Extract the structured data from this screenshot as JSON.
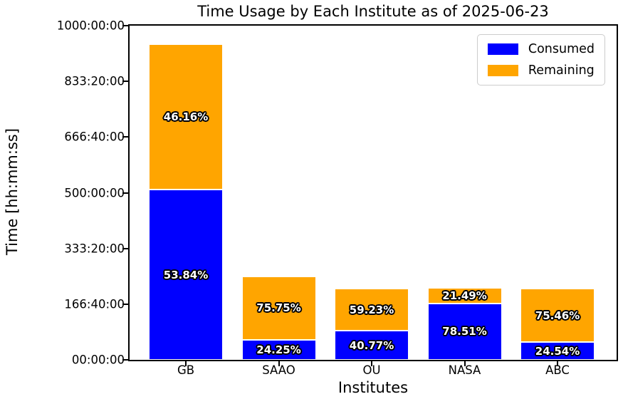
{
  "chart_data": {
    "type": "bar",
    "stacked": true,
    "title": "Time Usage by Each Institute as of 2025-06-23",
    "xlabel": "Institutes",
    "ylabel": "Time [hh:mm:ss]",
    "categories": [
      "GB",
      "SAAO",
      "OU",
      "NASA",
      "ABC"
    ],
    "series": [
      {
        "name": "Consumed",
        "color": "#0000ff",
        "values_hours": [
          508.6,
          60.5,
          86.9,
          169.1,
          52.3
        ],
        "pct_labels": [
          "53.84%",
          "24.25%",
          "40.77%",
          "78.51%",
          "24.54%"
        ]
      },
      {
        "name": "Remaining",
        "color": "#ffa500",
        "values_hours": [
          436.0,
          189.0,
          126.3,
          46.3,
          160.9
        ],
        "pct_labels": [
          "46.16%",
          "75.75%",
          "59.23%",
          "21.49%",
          "75.46%"
        ]
      }
    ],
    "totals_hours": [
      944.6,
      249.5,
      213.2,
      215.4,
      213.2
    ],
    "ylim": [
      0,
      1000
    ],
    "ytick_labels": [
      "00:00:00",
      "166:40:00",
      "333:20:00",
      "500:00:00",
      "666:40:00",
      "833:20:00",
      "1000:00:00"
    ],
    "legend_position": "upper right",
    "grid": false,
    "colors": {
      "axis": "#000000",
      "pct_label_fill": "#ffffff",
      "pct_label_outline": "#000000",
      "legend_border": "#cccccc"
    }
  }
}
